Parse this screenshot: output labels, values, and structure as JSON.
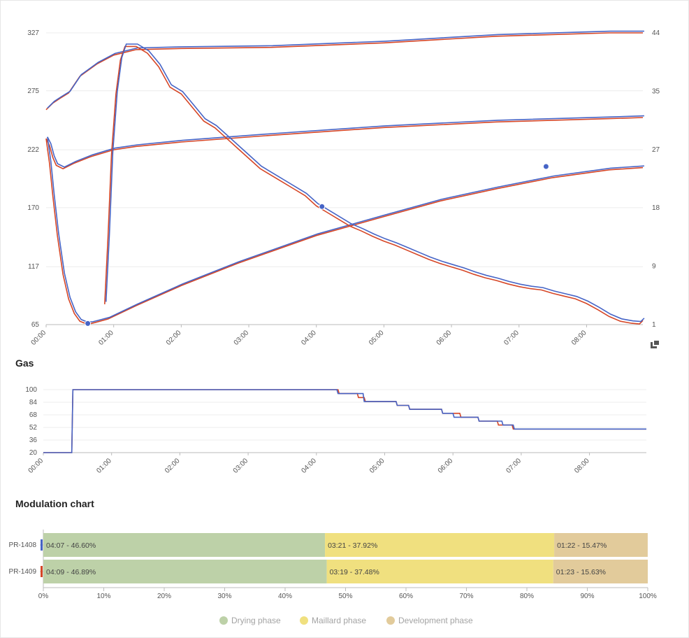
{
  "chart_data": [
    {
      "type": "line",
      "title": "",
      "x_unit": "minutes",
      "x_range": [
        0,
        530
      ],
      "x_ticks": [
        "00:00",
        "01:00",
        "02:00",
        "03:00",
        "04:00",
        "05:00",
        "06:00",
        "07:00",
        "08:00"
      ],
      "y_left": {
        "range": [
          65,
          327
        ],
        "ticks": [
          65,
          117,
          170,
          222,
          275,
          327
        ]
      },
      "y_right": {
        "range": [
          1,
          44
        ],
        "ticks": [
          1,
          9,
          18,
          27,
          35,
          44
        ]
      },
      "grid": true,
      "legend": "none",
      "colors": {
        "PR-1408": "#4664c6",
        "PR-1409": "#d64626"
      },
      "series": [
        {
          "axis": "left",
          "points": [
            [
              0,
              258
            ],
            [
              6,
              264
            ],
            [
              12,
              268
            ],
            [
              20,
              273
            ],
            [
              30,
              288
            ],
            [
              45,
              299
            ],
            [
              60,
              307
            ],
            [
              80,
              312
            ],
            [
              120,
              313
            ],
            [
              200,
              314
            ],
            [
              300,
              318
            ],
            [
              400,
              324
            ],
            [
              500,
              327
            ],
            [
              530,
              327
            ]
          ]
        },
        {
          "axis": "left",
          "points": [
            [
              0,
              232
            ],
            [
              3,
              226
            ],
            [
              6,
              215
            ],
            [
              9,
              208
            ],
            [
              15,
              205
            ],
            [
              25,
              210
            ],
            [
              40,
              216
            ],
            [
              60,
              222
            ],
            [
              80,
              225
            ],
            [
              120,
              229
            ],
            [
              200,
              235
            ],
            [
              300,
              242
            ],
            [
              400,
              247
            ],
            [
              500,
              250
            ],
            [
              530,
              251
            ]
          ]
        },
        {
          "axis": "left",
          "points": [
            [
              0,
              232
            ],
            [
              3,
              210
            ],
            [
              6,
              180
            ],
            [
              10,
              145
            ],
            [
              15,
              110
            ],
            [
              20,
              88
            ],
            [
              25,
              75
            ],
            [
              30,
              68
            ],
            [
              35,
              66
            ],
            [
              40,
              66
            ],
            [
              44,
              67
            ],
            [
              55,
              70
            ],
            [
              80,
              82
            ],
            [
              120,
              100
            ],
            [
              170,
              120
            ],
            [
              240,
              145
            ],
            [
              300,
              162
            ],
            [
              350,
              176
            ],
            [
              400,
              187
            ],
            [
              450,
              197
            ],
            [
              500,
              204
            ],
            [
              530,
              206
            ]
          ]
        },
        {
          "axis": "right",
          "points": [
            [
              52,
              4
            ],
            [
              55,
              14
            ],
            [
              58,
              26
            ],
            [
              62,
              35
            ],
            [
              66,
              40
            ],
            [
              70,
              42
            ],
            [
              80,
              42
            ],
            [
              90,
              41
            ],
            [
              100,
              39
            ],
            [
              110,
              36
            ],
            [
              120,
              35
            ],
            [
              130,
              33
            ],
            [
              140,
              31
            ],
            [
              150,
              30
            ],
            [
              160,
              28.5
            ],
            [
              170,
              27
            ],
            [
              180,
              25.5
            ],
            [
              190,
              24
            ],
            [
              200,
              23
            ],
            [
              210,
              22
            ],
            [
              220,
              21
            ],
            [
              230,
              20
            ],
            [
              240,
              18.5
            ],
            [
              250,
              17.5
            ],
            [
              260,
              16.5
            ],
            [
              270,
              15.5
            ],
            [
              280,
              14.8
            ],
            [
              290,
              14
            ],
            [
              300,
              13.3
            ],
            [
              310,
              12.7
            ],
            [
              320,
              12
            ],
            [
              330,
              11.3
            ],
            [
              340,
              10.6
            ],
            [
              350,
              10
            ],
            [
              360,
              9.5
            ],
            [
              370,
              9
            ],
            [
              380,
              8.4
            ],
            [
              390,
              7.9
            ],
            [
              400,
              7.5
            ],
            [
              410,
              7
            ],
            [
              420,
              6.6
            ],
            [
              430,
              6.3
            ],
            [
              440,
              6.1
            ],
            [
              450,
              5.6
            ],
            [
              460,
              5.2
            ],
            [
              470,
              4.8
            ],
            [
              480,
              4.1
            ],
            [
              490,
              3.2
            ],
            [
              500,
              2.2
            ],
            [
              510,
              1.5
            ],
            [
              520,
              1.2
            ],
            [
              527,
              1.1
            ],
            [
              530,
              1.6
            ]
          ]
        }
      ],
      "markers": [
        [
          37,
          66
        ],
        [
          245,
          171
        ],
        [
          444,
          207
        ]
      ]
    },
    {
      "type": "line",
      "title": "Gas",
      "x_unit": "minutes",
      "x_range": [
        0,
        530
      ],
      "x_ticks": [
        "00:00",
        "01:00",
        "02:00",
        "03:00",
        "04:00",
        "05:00",
        "06:00",
        "07:00",
        "08:00"
      ],
      "y_range": [
        20,
        100
      ],
      "y_ticks": [
        20,
        36,
        52,
        68,
        84,
        100
      ],
      "grid": true,
      "series": [
        {
          "name": "PR-1408",
          "color": "#4664c6",
          "points": [
            [
              0,
              20
            ],
            [
              25,
              20
            ],
            [
              26,
              100
            ],
            [
              258,
              100
            ],
            [
              259,
              95
            ],
            [
              281,
              95
            ],
            [
              282,
              85
            ],
            [
              310,
              85
            ],
            [
              311,
              80
            ],
            [
              321,
              80
            ],
            [
              322,
              75
            ],
            [
              350,
              75
            ],
            [
              351,
              70
            ],
            [
              360,
              70
            ],
            [
              361,
              65
            ],
            [
              382,
              65
            ],
            [
              383,
              60
            ],
            [
              403,
              60
            ],
            [
              404,
              55
            ],
            [
              413,
              55
            ],
            [
              414,
              50
            ],
            [
              530,
              50
            ]
          ]
        },
        {
          "name": "PR-1409",
          "color": "#d64626",
          "points": [
            [
              0,
              20
            ],
            [
              25,
              20
            ],
            [
              26,
              100
            ],
            [
              259,
              100
            ],
            [
              260,
              95
            ],
            [
              276,
              95
            ],
            [
              277,
              90
            ],
            [
              282,
              90
            ],
            [
              283,
              85
            ],
            [
              310,
              85
            ],
            [
              311,
              80
            ],
            [
              321,
              80
            ],
            [
              322,
              75
            ],
            [
              350,
              75
            ],
            [
              351,
              70
            ],
            [
              366,
              70
            ],
            [
              367,
              65
            ],
            [
              382,
              65
            ],
            [
              383,
              60
            ],
            [
              399,
              60
            ],
            [
              400,
              55
            ],
            [
              412,
              55
            ],
            [
              413,
              50
            ],
            [
              530,
              50
            ]
          ]
        }
      ]
    },
    {
      "type": "bar",
      "orientation": "horizontal",
      "stacked": true,
      "title": "Modulation chart",
      "categories": [
        "PR-1408",
        "PR-1409"
      ],
      "category_colors": [
        "#4664c6",
        "#d64626"
      ],
      "x_ticks": [
        "0%",
        "10%",
        "20%",
        "30%",
        "40%",
        "50%",
        "60%",
        "70%",
        "80%",
        "90%",
        "100%"
      ],
      "x_range": [
        0,
        100
      ],
      "legend": "bottom",
      "series": [
        {
          "name": "Drying phase",
          "color": "#bdd1a8",
          "values": [
            46.6,
            46.89
          ],
          "labels": [
            "04:07 - 46.60%",
            "04:09 - 46.89%"
          ]
        },
        {
          "name": "Maillard phase",
          "color": "#f0e07f",
          "values": [
            37.92,
            37.48
          ],
          "labels": [
            "03:21 - 37.92%",
            "03:19 - 37.48%"
          ]
        },
        {
          "name": "Development phase",
          "color": "#e2cb9b",
          "values": [
            15.47,
            15.63
          ],
          "labels": [
            "01:22 - 15.47%",
            "01:23 - 15.63%"
          ]
        }
      ]
    }
  ]
}
